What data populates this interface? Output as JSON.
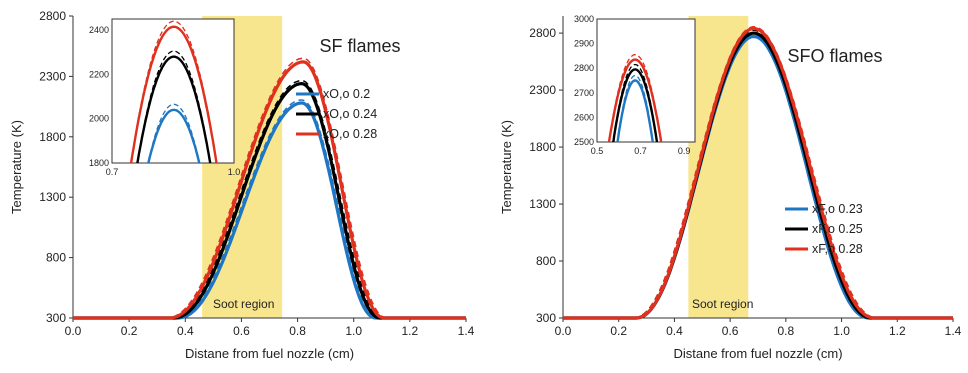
{
  "colors": {
    "blue": "#1f77c4",
    "black": "#000000",
    "red": "#e0301e",
    "soot": "#f7e27a",
    "axis": "#333333"
  },
  "chart_data": [
    {
      "type": "line",
      "panel_title": "SF flames",
      "xlabel": "Distane from fuel nozzle (cm)",
      "ylabel": "Temperature (K)",
      "xlim": [
        0,
        1.4
      ],
      "ylim": [
        300,
        2800
      ],
      "x_ticks": [
        "0.0",
        "0.2",
        "0.4",
        "0.6",
        "0.8",
        "1.0",
        "1.2",
        "1.4"
      ],
      "y_ticks": [
        "300",
        "800",
        "1300",
        "1800",
        "2300",
        "2800"
      ],
      "soot_region": {
        "label": "Soot region",
        "x_start": 0.46,
        "x_end": 0.745
      },
      "legend_position": "right",
      "series": [
        {
          "name": "xO,o 0.2",
          "color": "blue",
          "peak_x": 0.815,
          "peak_y": 2080,
          "start_x": 0.37,
          "end_x": 1.08,
          "dashed_offset": 25
        },
        {
          "name": "xO,o 0.24",
          "color": "black",
          "peak_x": 0.815,
          "peak_y": 2240,
          "start_x": 0.355,
          "end_x": 1.095,
          "dashed_offset": 25
        },
        {
          "name": "xO,o 0.28",
          "color": "red",
          "peak_x": 0.82,
          "peak_y": 2420,
          "start_x": 0.34,
          "end_x": 1.11,
          "dashed_offset": 30
        }
      ],
      "inset": {
        "xlim": [
          0.7,
          1.0
        ],
        "ylim": [
          1800,
          2450
        ],
        "x_ticks": [
          "0.7",
          "1.0"
        ],
        "y_ticks": [
          "1800",
          "2000",
          "2200",
          "2400"
        ],
        "curves": [
          {
            "color": "blue",
            "peak_x": 0.852,
            "peak_y": 2040,
            "half_width": 0.07
          },
          {
            "color": "blue",
            "peak_x": 0.852,
            "peak_y": 2065,
            "half_width": 0.07,
            "dashed": true
          },
          {
            "color": "black",
            "peak_x": 0.852,
            "peak_y": 2280,
            "half_width": 0.095
          },
          {
            "color": "black",
            "peak_x": 0.852,
            "peak_y": 2305,
            "half_width": 0.095,
            "dashed": true
          },
          {
            "color": "red",
            "peak_x": 0.852,
            "peak_y": 2415,
            "half_width": 0.11
          },
          {
            "color": "red",
            "peak_x": 0.852,
            "peak_y": 2440,
            "half_width": 0.11,
            "dashed": true
          }
        ]
      }
    },
    {
      "type": "line",
      "panel_title": "SFO flames",
      "xlabel": "Distane from fuel nozzle (cm)",
      "ylabel": "Temperature (K)",
      "xlim": [
        0,
        1.4
      ],
      "ylim": [
        300,
        2950
      ],
      "x_ticks": [
        "0.0",
        "0.2",
        "0.4",
        "0.6",
        "0.8",
        "1.0",
        "1.2",
        "1.4"
      ],
      "y_ticks": [
        "300",
        "800",
        "1300",
        "1800",
        "2300",
        "2800"
      ],
      "soot_region": {
        "label": "Soot region",
        "x_start": 0.45,
        "x_end": 0.665
      },
      "legend_position": "right",
      "series": [
        {
          "name": "xF,o 0.23",
          "color": "blue",
          "peak_x": 0.685,
          "peak_y": 2770,
          "start_x": 0.26,
          "end_x": 1.1,
          "dashed_offset": 20
        },
        {
          "name": "xF,o 0.25",
          "color": "black",
          "peak_x": 0.685,
          "peak_y": 2800,
          "start_x": 0.26,
          "end_x": 1.11,
          "dashed_offset": 25
        },
        {
          "name": "xF,o 0.28",
          "color": "red",
          "peak_x": 0.685,
          "peak_y": 2840,
          "start_x": 0.26,
          "end_x": 1.12,
          "dashed_offset": 15
        }
      ],
      "inset": {
        "xlim": [
          0.5,
          0.95
        ],
        "ylim": [
          2500,
          3000
        ],
        "x_ticks": [
          "0.5",
          "0.7",
          "0.9"
        ],
        "y_ticks": [
          "2500",
          "2600",
          "2700",
          "2800",
          "2900",
          "3000"
        ],
        "curves": [
          {
            "color": "blue",
            "peak_x": 0.675,
            "peak_y": 2750,
            "half_width": 0.09
          },
          {
            "color": "blue",
            "peak_x": 0.675,
            "peak_y": 2770,
            "half_width": 0.09,
            "dashed": true
          },
          {
            "color": "black",
            "peak_x": 0.675,
            "peak_y": 2795,
            "half_width": 0.11
          },
          {
            "color": "black",
            "peak_x": 0.675,
            "peak_y": 2815,
            "half_width": 0.11,
            "dashed": true
          },
          {
            "color": "red",
            "peak_x": 0.675,
            "peak_y": 2835,
            "half_width": 0.13
          },
          {
            "color": "red",
            "peak_x": 0.675,
            "peak_y": 2855,
            "half_width": 0.13,
            "dashed": true
          }
        ]
      }
    }
  ]
}
